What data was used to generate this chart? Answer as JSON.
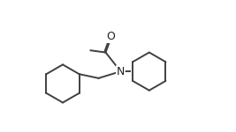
{
  "background_color": "#ffffff",
  "line_color": "#404040",
  "line_width": 1.4,
  "text_color": "#202020",
  "N_label": "N",
  "O_label": "O",
  "figsize": [
    2.67,
    1.5
  ],
  "dpi": 100,
  "font_size": 9
}
